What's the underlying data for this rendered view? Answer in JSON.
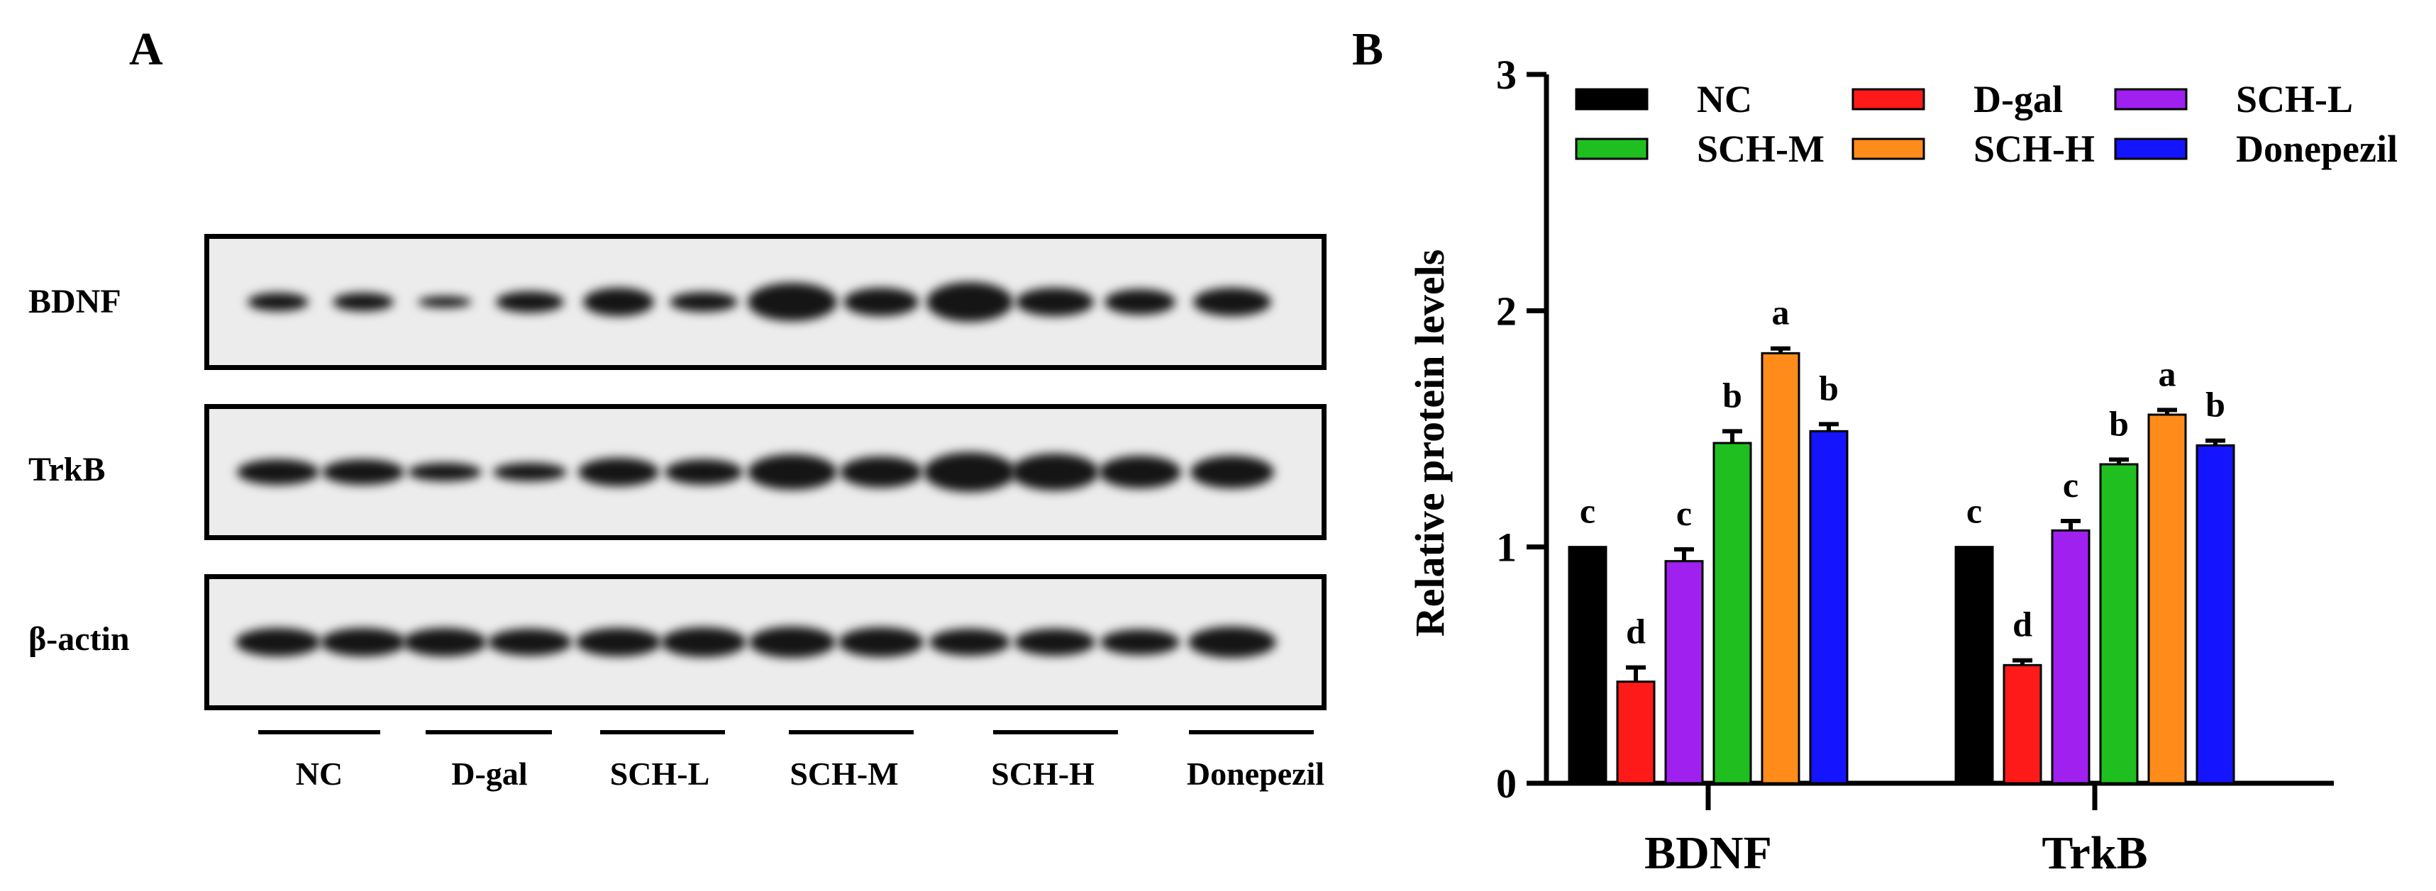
{
  "panels": {
    "A": "A",
    "B": "B"
  },
  "western_blot": {
    "proteins": [
      "BDNF",
      "TrkB",
      "β-actin"
    ],
    "groups": [
      "NC",
      "D-gal",
      "SCH-L",
      "SCH-M",
      "SCH-H",
      "Donepezil"
    ]
  },
  "chart_data": {
    "type": "bar",
    "categories": [
      "BDNF",
      "TrkB"
    ],
    "ylabel": "Relative protein levels",
    "xlabel": "",
    "ylim": [
      0,
      3
    ],
    "yticks": [
      0,
      1,
      2,
      3
    ],
    "grid": false,
    "legend_position": "top",
    "series": [
      {
        "name": "NC",
        "color": "#000000",
        "values": [
          1.0,
          1.0
        ],
        "errors": [
          0,
          0
        ],
        "letters": [
          "c",
          "c"
        ]
      },
      {
        "name": "D-gal",
        "color": "#ff1a1a",
        "values": [
          0.43,
          0.5
        ],
        "errors": [
          0.06,
          0.02
        ],
        "letters": [
          "d",
          "d"
        ]
      },
      {
        "name": "SCH-L",
        "color": "#a020f0",
        "values": [
          0.94,
          1.07
        ],
        "errors": [
          0.05,
          0.04
        ],
        "letters": [
          "c",
          "c"
        ]
      },
      {
        "name": "SCH-M",
        "color": "#1fbf1f",
        "values": [
          1.44,
          1.35
        ],
        "errors": [
          0.05,
          0.02
        ],
        "letters": [
          "b",
          "b"
        ]
      },
      {
        "name": "SCH-H",
        "color": "#ff8c1a",
        "values": [
          1.82,
          1.56
        ],
        "errors": [
          0.02,
          0.02
        ],
        "letters": [
          "a",
          "a"
        ]
      },
      {
        "name": "Donepezil",
        "color": "#1414ff",
        "values": [
          1.49,
          1.43
        ],
        "errors": [
          0.03,
          0.02
        ],
        "letters": [
          "b",
          "b"
        ]
      }
    ]
  }
}
